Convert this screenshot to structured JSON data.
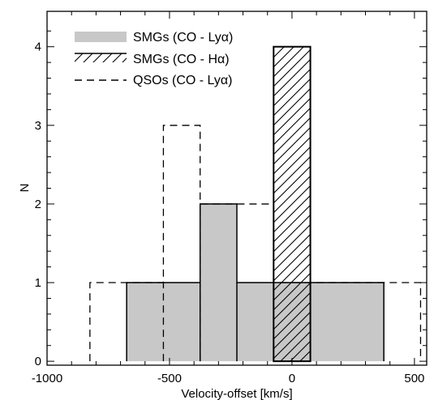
{
  "chart_data": {
    "type": "histogram",
    "title": "",
    "xlabel": "Velocity-offset [km/s]",
    "ylabel": "N",
    "xlim": [
      -1000,
      550
    ],
    "ylim": [
      -0.05,
      4.45
    ],
    "x_ticks": [
      -1000,
      -500,
      0,
      500
    ],
    "x_tick_labels": [
      "-1000",
      "-500",
      "0",
      "500"
    ],
    "y_ticks": [
      0,
      1,
      2,
      3,
      4
    ],
    "y_tick_labels": [
      "0",
      "1",
      "2",
      "3",
      "4"
    ],
    "legend_position": "top-left",
    "series": [
      {
        "name": "SMGs (CO - Lyα)",
        "style": "filled",
        "fill": "#c8c8c8",
        "bins": [
          {
            "x0": -675,
            "x1": -375,
            "count": 1
          },
          {
            "x0": -375,
            "x1": -225,
            "count": 2
          },
          {
            "x0": -225,
            "x1": 375,
            "count": 1
          }
        ]
      },
      {
        "name": "SMGs (CO - Hα)",
        "style": "hatched",
        "bins": [
          {
            "x0": -75,
            "x1": 75,
            "count": 4
          }
        ]
      },
      {
        "name": "QSOs (CO - Lyα)",
        "style": "dashed",
        "bins": [
          {
            "x0": -825,
            "x1": -525,
            "count": 1
          },
          {
            "x0": -525,
            "x1": -375,
            "count": 3
          },
          {
            "x0": -375,
            "x1": -75,
            "count": 2
          },
          {
            "x0": -75,
            "x1": 525,
            "count": 1
          }
        ]
      }
    ]
  }
}
